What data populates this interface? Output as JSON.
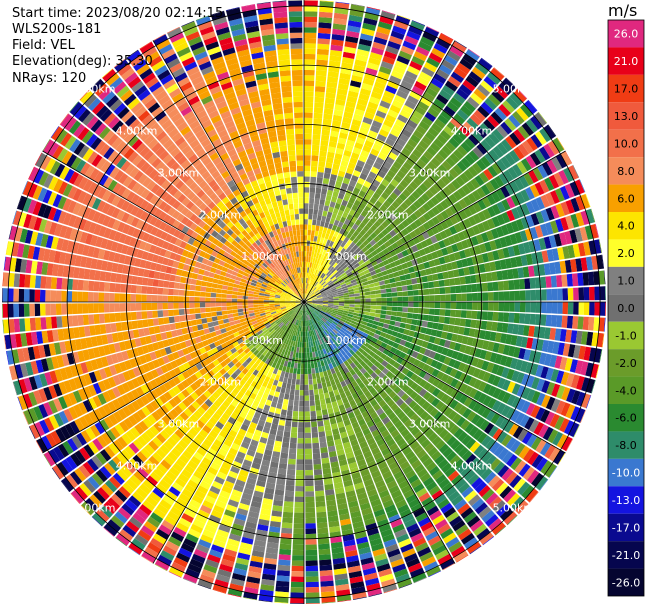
{
  "header": {
    "start_time": "Start time: 2023/08/20 02:14:15",
    "site": "WLS200s-181",
    "field": "Field: VEL",
    "elevation": "Elevation(deg): 35.30",
    "nrays": "NRays: 120"
  },
  "chart_data": {
    "type": "heatmap",
    "projection": "polar-ppi",
    "units": "m/s",
    "n_rays": 120,
    "range_rings_km": [
      1.0,
      2.0,
      3.0,
      4.0,
      5.0
    ],
    "range_ring_labels": [
      "1.00km",
      "2.00km",
      "3.00km",
      "4.00km",
      "5.00km"
    ],
    "max_range_km": 5.1,
    "colorbar": {
      "title": "m/s",
      "ticks": [
        "26.0",
        "21.0",
        "17.0",
        "13.0",
        "10.0",
        "8.0",
        "6.0",
        "4.0",
        "2.0",
        "1.0",
        "0.0",
        "-1.0",
        "-2.0",
        "-4.0",
        "-6.0",
        "-8.0",
        "-10.0",
        "-13.0",
        "-17.0",
        "-21.0",
        "-26.0",
        "-30.0"
      ],
      "bands": [
        {
          "lo": 21,
          "hi": 26,
          "color": "#e0287f"
        },
        {
          "lo": 17,
          "hi": 21,
          "color": "#e8001a"
        },
        {
          "lo": 13,
          "hi": 17,
          "color": "#f03c14"
        },
        {
          "lo": 10,
          "hi": 13,
          "color": "#f05a3c"
        },
        {
          "lo": 8,
          "hi": 10,
          "color": "#f2704a"
        },
        {
          "lo": 6,
          "hi": 8,
          "color": "#f58c5a"
        },
        {
          "lo": 4,
          "hi": 6,
          "color": "#f8a000"
        },
        {
          "lo": 2,
          "hi": 4,
          "color": "#fde500"
        },
        {
          "lo": 1,
          "hi": 2,
          "color": "#ffff2a"
        },
        {
          "lo": 0,
          "hi": 1,
          "color": "#808080"
        },
        {
          "lo": -1,
          "hi": 0,
          "color": "#707070"
        },
        {
          "lo": -2,
          "hi": -1,
          "color": "#9ac832"
        },
        {
          "lo": -4,
          "hi": -2,
          "color": "#6b9c2a"
        },
        {
          "lo": -6,
          "hi": -4,
          "color": "#5a9a28"
        },
        {
          "lo": -8,
          "hi": -6,
          "color": "#2a8a30"
        },
        {
          "lo": -10,
          "hi": -8,
          "color": "#2e8c6a"
        },
        {
          "lo": -13,
          "hi": -10,
          "color": "#3a78d0"
        },
        {
          "lo": -17,
          "hi": -13,
          "color": "#1414e0"
        },
        {
          "lo": -21,
          "hi": -17,
          "color": "#0a0a90"
        },
        {
          "lo": -26,
          "hi": -21,
          "color": "#06064e"
        },
        {
          "lo": -30,
          "hi": -26,
          "color": "#050530"
        }
      ]
    }
  }
}
